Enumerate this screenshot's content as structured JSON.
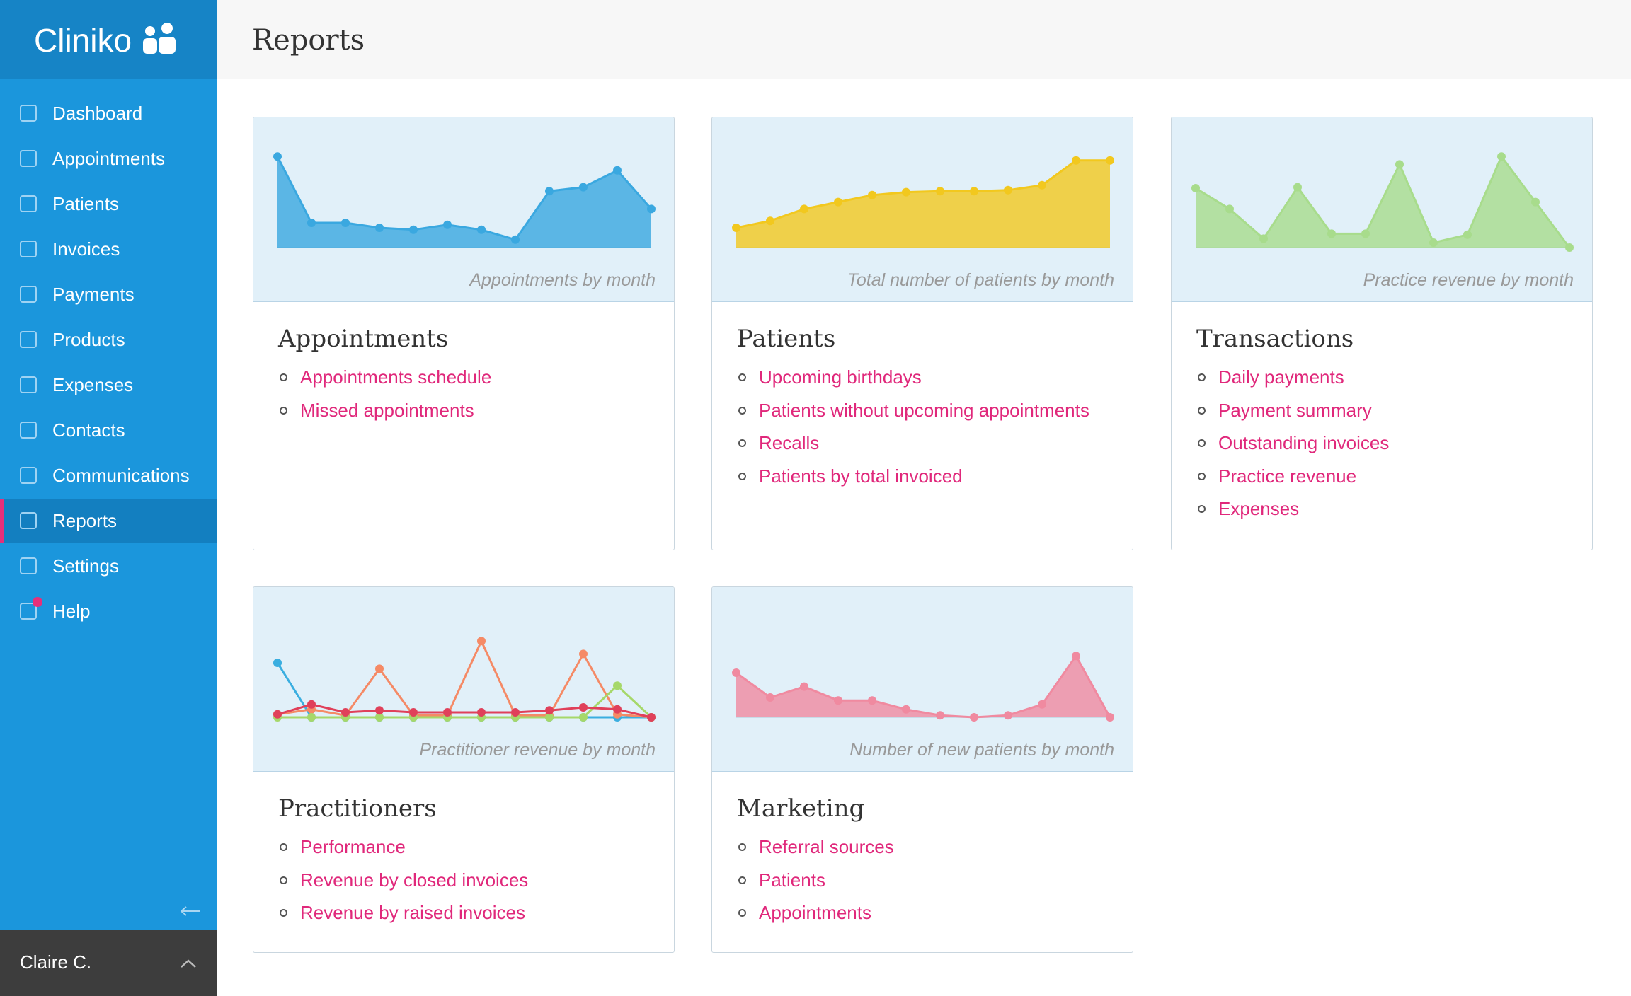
{
  "sidebar": {
    "brand": "Cliniko",
    "nav": [
      "Dashboard",
      "Appointments",
      "Patients",
      "Invoices",
      "Payments",
      "Products",
      "Expenses",
      "Contacts",
      "Communications",
      "Reports",
      "Settings",
      "Help"
    ],
    "user": "Claire C."
  },
  "header": {
    "title": "Reports"
  },
  "cards": [
    {
      "title": "Appointments",
      "links": [
        "Appointments schedule",
        "Missed appointments"
      ],
      "chart": {
        "type": "area",
        "caption": "Appointments by month",
        "ylim": [
          0,
          100
        ],
        "series": [
          {
            "color": "#3aa8e0",
            "values": [
              92,
              25,
              25,
              20,
              18,
              23,
              18,
              8,
              57,
              61,
              78,
              39
            ]
          }
        ]
      }
    },
    {
      "title": "Patients",
      "links": [
        "Upcoming birthdays",
        "Patients without upcoming appointments",
        "Recalls",
        "Patients by total invoiced"
      ],
      "chart": {
        "type": "area",
        "caption": "Total number of patients by month",
        "ylim": [
          0,
          100
        ],
        "series": [
          {
            "color": "#f2c81e",
            "values": [
              20,
              27,
              39,
              46,
              53,
              56,
              57,
              57,
              58,
              63,
              88,
              88
            ]
          }
        ]
      }
    },
    {
      "title": "Transactions",
      "links": [
        "Daily payments",
        "Payment summary",
        "Outstanding invoices",
        "Practice revenue",
        "Expenses"
      ],
      "chart": {
        "type": "area",
        "caption": "Practice revenue by month",
        "ylim": [
          0,
          100
        ],
        "series": [
          {
            "color": "#a8dc8c",
            "values": [
              60,
              39,
              9,
              61,
              14,
              14,
              84,
              5,
              13,
              92,
              46,
              0
            ]
          }
        ]
      }
    },
    {
      "title": "Practitioners",
      "links": [
        "Performance",
        "Revenue by closed invoices",
        "Revenue by raised invoices"
      ],
      "chart": {
        "type": "line",
        "caption": "Practitioner revenue by month",
        "ylim": [
          0,
          100
        ],
        "series": [
          {
            "color": "#3aaee0",
            "values": [
              55,
              0,
              0,
              0,
              0,
              0,
              0,
              0,
              0,
              0,
              0,
              0
            ]
          },
          {
            "color": "#f58a66",
            "values": [
              3,
              8,
              2,
              49,
              2,
              2,
              77,
              2,
              2,
              64,
              3,
              0
            ]
          },
          {
            "color": "#a6d86a",
            "values": [
              0,
              0,
              0,
              0,
              0,
              0,
              0,
              0,
              0,
              0,
              32,
              0
            ]
          },
          {
            "color": "#e0405a",
            "values": [
              3,
              13,
              5,
              7,
              5,
              5,
              5,
              5,
              7,
              10,
              8,
              0
            ]
          }
        ]
      }
    },
    {
      "title": "Marketing",
      "links": [
        "Referral sources",
        "Patients",
        "Appointments"
      ],
      "chart": {
        "type": "area",
        "caption": "Number of new patients by month",
        "ylim": [
          0,
          100
        ],
        "series": [
          {
            "color": "#f08aa0",
            "values": [
              45,
              20,
              31,
              17,
              17,
              8,
              2,
              0,
              2,
              13,
              62,
              0
            ]
          }
        ]
      }
    }
  ]
}
